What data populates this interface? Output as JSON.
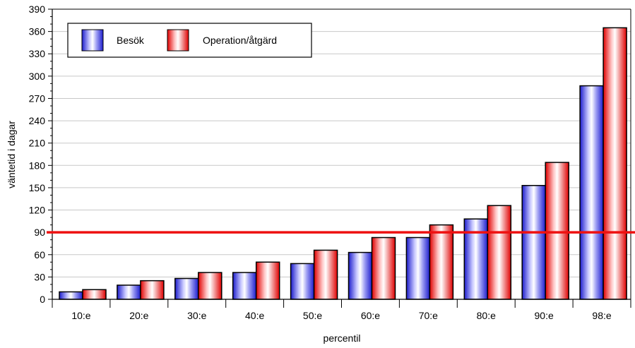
{
  "chart_data": {
    "type": "bar",
    "title": "",
    "xlabel": "percentil",
    "ylabel": "väntetid i dagar",
    "categories": [
      "10:e",
      "20:e",
      "30:e",
      "40:e",
      "50:e",
      "60:e",
      "70:e",
      "80:e",
      "90:e",
      "98:e"
    ],
    "series": [
      {
        "name": "Besök",
        "values": [
          10,
          19,
          28,
          36,
          48,
          63,
          83,
          108,
          153,
          287
        ]
      },
      {
        "name": "Operation/åtgärd",
        "values": [
          13,
          25,
          36,
          50,
          66,
          83,
          100,
          126,
          184,
          365
        ]
      }
    ],
    "ylim": [
      0,
      390
    ],
    "yticks": [
      0,
      30,
      60,
      90,
      120,
      150,
      180,
      210,
      240,
      270,
      300,
      330,
      360,
      390
    ],
    "reference_line": {
      "value": 90,
      "color": "#ee1111"
    },
    "grid": true,
    "legend_position": "top-left",
    "series_colors": [
      "#2a2ae0",
      "#e62020"
    ]
  }
}
